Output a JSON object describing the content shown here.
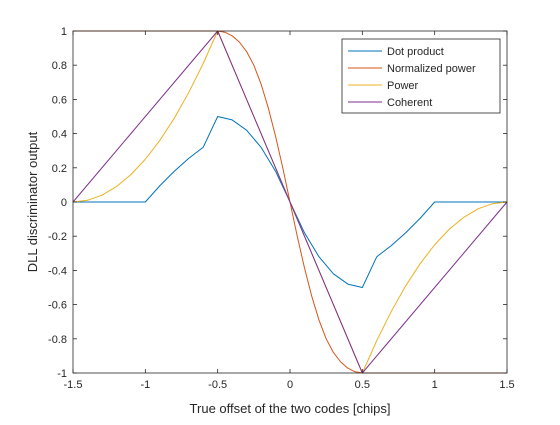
{
  "chart_data": {
    "type": "line",
    "title": "",
    "xlabel": "True offset of the two codes [chips]",
    "ylabel": "DLL discriminator output",
    "xlim": [
      -1.5,
      1.5
    ],
    "ylim": [
      -1,
      1
    ],
    "xticks": [
      -1.5,
      -1,
      -0.5,
      0,
      0.5,
      1,
      1.5
    ],
    "xtick_labels": [
      "-1.5",
      "-1",
      "-0.5",
      "0",
      "0.5",
      "1",
      "1.5"
    ],
    "yticks": [
      -1,
      -0.8,
      -0.6,
      -0.4,
      -0.2,
      0,
      0.2,
      0.4,
      0.6,
      0.8,
      1
    ],
    "ytick_labels": [
      "-1",
      "-0.8",
      "-0.6",
      "-0.4",
      "-0.2",
      "0",
      "0.2",
      "0.4",
      "0.6",
      "0.8",
      "1"
    ],
    "grid": false,
    "legend_position": "top-right",
    "series": [
      {
        "name": "Dot product",
        "color": "#0072BD",
        "x": [
          -1.5,
          -1.4,
          -1.3,
          -1.2,
          -1.1,
          -1.0,
          -0.9,
          -0.8,
          -0.7,
          -0.6,
          -0.5,
          -0.4,
          -0.3,
          -0.2,
          -0.1,
          0,
          0.1,
          0.2,
          0.3,
          0.4,
          0.5,
          0.6,
          0.7,
          0.8,
          0.9,
          1.0,
          1.1,
          1.2,
          1.3,
          1.4,
          1.5
        ],
        "y": [
          0,
          0,
          0,
          0,
          0,
          0,
          0.095,
          0.18,
          0.255,
          0.32,
          0.5,
          0.48,
          0.42,
          0.32,
          0.18,
          0,
          -0.18,
          -0.32,
          -0.42,
          -0.48,
          -0.5,
          -0.32,
          -0.255,
          -0.18,
          -0.095,
          0,
          0,
          0,
          0,
          0,
          0
        ]
      },
      {
        "name": "Normalized power",
        "color": "#D95319",
        "x": [
          -1.5,
          -1.0,
          -0.5,
          -0.45,
          -0.4,
          -0.35,
          -0.3,
          -0.25,
          -0.2,
          -0.15,
          -0.1,
          -0.05,
          0,
          0.05,
          0.1,
          0.15,
          0.2,
          0.25,
          0.3,
          0.35,
          0.4,
          0.45,
          0.5,
          1.0,
          1.5
        ],
        "y": [
          1,
          1,
          1,
          0.993,
          0.972,
          0.935,
          0.88,
          0.8,
          0.69,
          0.55,
          0.385,
          0.2,
          0,
          -0.2,
          -0.385,
          -0.55,
          -0.69,
          -0.8,
          -0.88,
          -0.935,
          -0.972,
          -0.993,
          -1,
          -1,
          -1
        ]
      },
      {
        "name": "Power",
        "color": "#EDB120",
        "x": [
          -1.5,
          -1.4,
          -1.3,
          -1.2,
          -1.1,
          -1.0,
          -0.9,
          -0.8,
          -0.7,
          -0.6,
          -0.5,
          -0.4,
          -0.3,
          -0.2,
          -0.1,
          0,
          0.1,
          0.2,
          0.3,
          0.4,
          0.5,
          0.6,
          0.7,
          0.8,
          0.9,
          1.0,
          1.1,
          1.2,
          1.3,
          1.4,
          1.5
        ],
        "y": [
          0,
          0.01,
          0.04,
          0.09,
          0.16,
          0.25,
          0.36,
          0.49,
          0.64,
          0.81,
          1,
          0.8,
          0.6,
          0.4,
          0.2,
          0,
          -0.2,
          -0.4,
          -0.6,
          -0.8,
          -1,
          -0.81,
          -0.64,
          -0.49,
          -0.36,
          -0.25,
          -0.16,
          -0.09,
          -0.04,
          -0.01,
          0
        ]
      },
      {
        "name": "Coherent",
        "color": "#7E2F8E",
        "x": [
          -1.5,
          -0.5,
          0.5,
          1.5
        ],
        "y": [
          0,
          1,
          -1,
          0
        ]
      }
    ]
  }
}
